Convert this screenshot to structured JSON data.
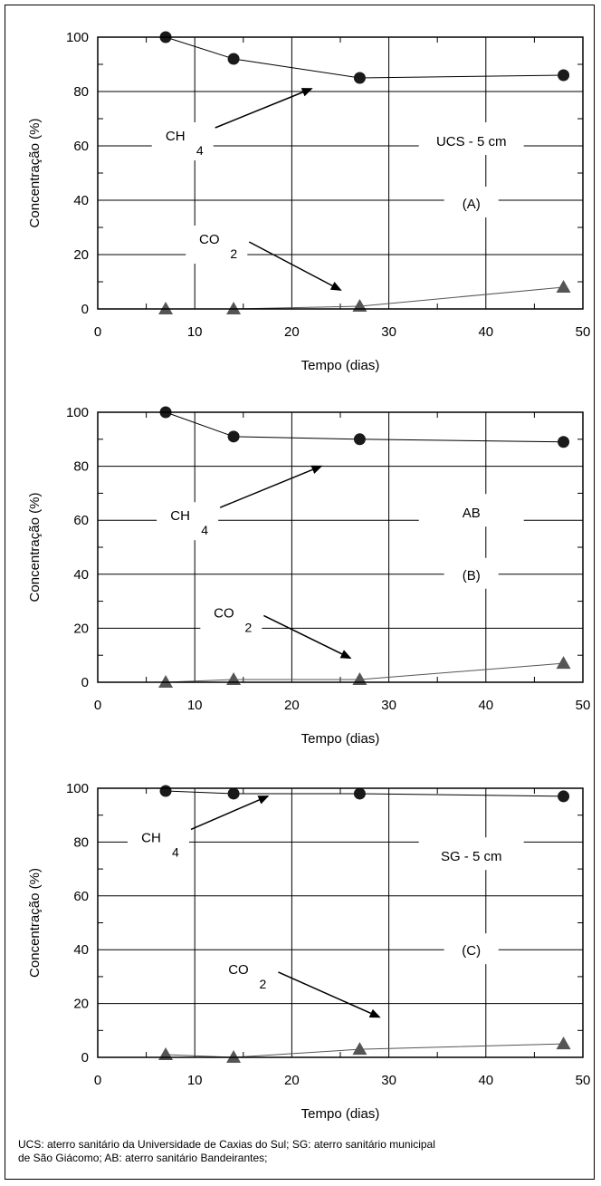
{
  "chart_data": [
    {
      "type": "line",
      "panel_label": "(A)",
      "site_label": "UCS - 5 cm",
      "xlabel": "Tempo (dias)",
      "ylabel": "Concentração (%)",
      "xlim": [
        0,
        50
      ],
      "ylim": [
        0,
        100
      ],
      "xticks": [
        "0",
        "10",
        "20",
        "30",
        "40",
        "50"
      ],
      "yticks": [
        "0",
        "20",
        "40",
        "60",
        "80",
        "100"
      ],
      "grid": true,
      "series": [
        {
          "name": "CH4",
          "marker": "circle",
          "color": "#000000",
          "x": [
            7,
            14,
            27,
            48
          ],
          "y": [
            100,
            92,
            85,
            86
          ]
        },
        {
          "name": "CO2",
          "marker": "triangle",
          "color": "#555555",
          "x": [
            7,
            14,
            27,
            48
          ],
          "y": [
            0,
            0,
            1,
            8
          ]
        }
      ],
      "annotations": [
        {
          "text": "CH",
          "sub": "4",
          "x": 8,
          "y": 62,
          "arrow_to": [
            22,
            81
          ]
        },
        {
          "text": "CO",
          "sub": "2",
          "x": 11.5,
          "y": 24,
          "arrow_to": [
            25,
            7
          ]
        }
      ]
    },
    {
      "type": "line",
      "panel_label": "(B)",
      "site_label": "AB",
      "xlabel": "Tempo (dias)",
      "ylabel": "Concentração (%)",
      "xlim": [
        0,
        50
      ],
      "ylim": [
        0,
        100
      ],
      "xticks": [
        "0",
        "10",
        "20",
        "30",
        "40",
        "50"
      ],
      "yticks": [
        "0",
        "20",
        "40",
        "60",
        "80",
        "100"
      ],
      "grid": true,
      "series": [
        {
          "name": "CH4",
          "marker": "circle",
          "color": "#000000",
          "x": [
            7,
            14,
            27,
            48
          ],
          "y": [
            100,
            91,
            90,
            89
          ]
        },
        {
          "name": "CO2",
          "marker": "triangle",
          "color": "#555555",
          "x": [
            7,
            14,
            27,
            48
          ],
          "y": [
            0,
            1,
            1,
            7
          ]
        }
      ],
      "annotations": [
        {
          "text": "CH",
          "sub": "4",
          "x": 8.5,
          "y": 60,
          "arrow_to": [
            23,
            80
          ]
        },
        {
          "text": "CO",
          "sub": "2",
          "x": 13,
          "y": 24,
          "arrow_to": [
            26,
            9
          ]
        }
      ]
    },
    {
      "type": "line",
      "panel_label": "(C)",
      "site_label": "SG - 5 cm",
      "xlabel": "Tempo (dias)",
      "ylabel": "Concentração (%)",
      "xlim": [
        0,
        50
      ],
      "ylim": [
        0,
        100
      ],
      "xticks": [
        "0",
        "10",
        "20",
        "30",
        "40",
        "50"
      ],
      "yticks": [
        "0",
        "20",
        "40",
        "60",
        "80",
        "100"
      ],
      "grid": true,
      "series": [
        {
          "name": "CH4",
          "marker": "circle",
          "color": "#000000",
          "x": [
            7,
            14,
            27,
            48
          ],
          "y": [
            99,
            98,
            98,
            97
          ]
        },
        {
          "name": "CO2",
          "marker": "triangle",
          "color": "#555555",
          "x": [
            7,
            14,
            27,
            48
          ],
          "y": [
            1,
            0,
            3,
            5
          ]
        }
      ],
      "annotations": [
        {
          "text": "CH",
          "sub": "4",
          "x": 5.5,
          "y": 80,
          "arrow_to": [
            17.5,
            97
          ]
        },
        {
          "text": "CO",
          "sub": "2",
          "x": 14.5,
          "y": 31,
          "arrow_to": [
            29,
            15
          ]
        }
      ]
    }
  ],
  "caption": {
    "line1": "UCS: aterro sanitário da Universidade de Caxias do Sul; SG: aterro sanitário municipal",
    "line2": "de São Giácomo; AB: aterro sanitário Bandeirantes;"
  }
}
